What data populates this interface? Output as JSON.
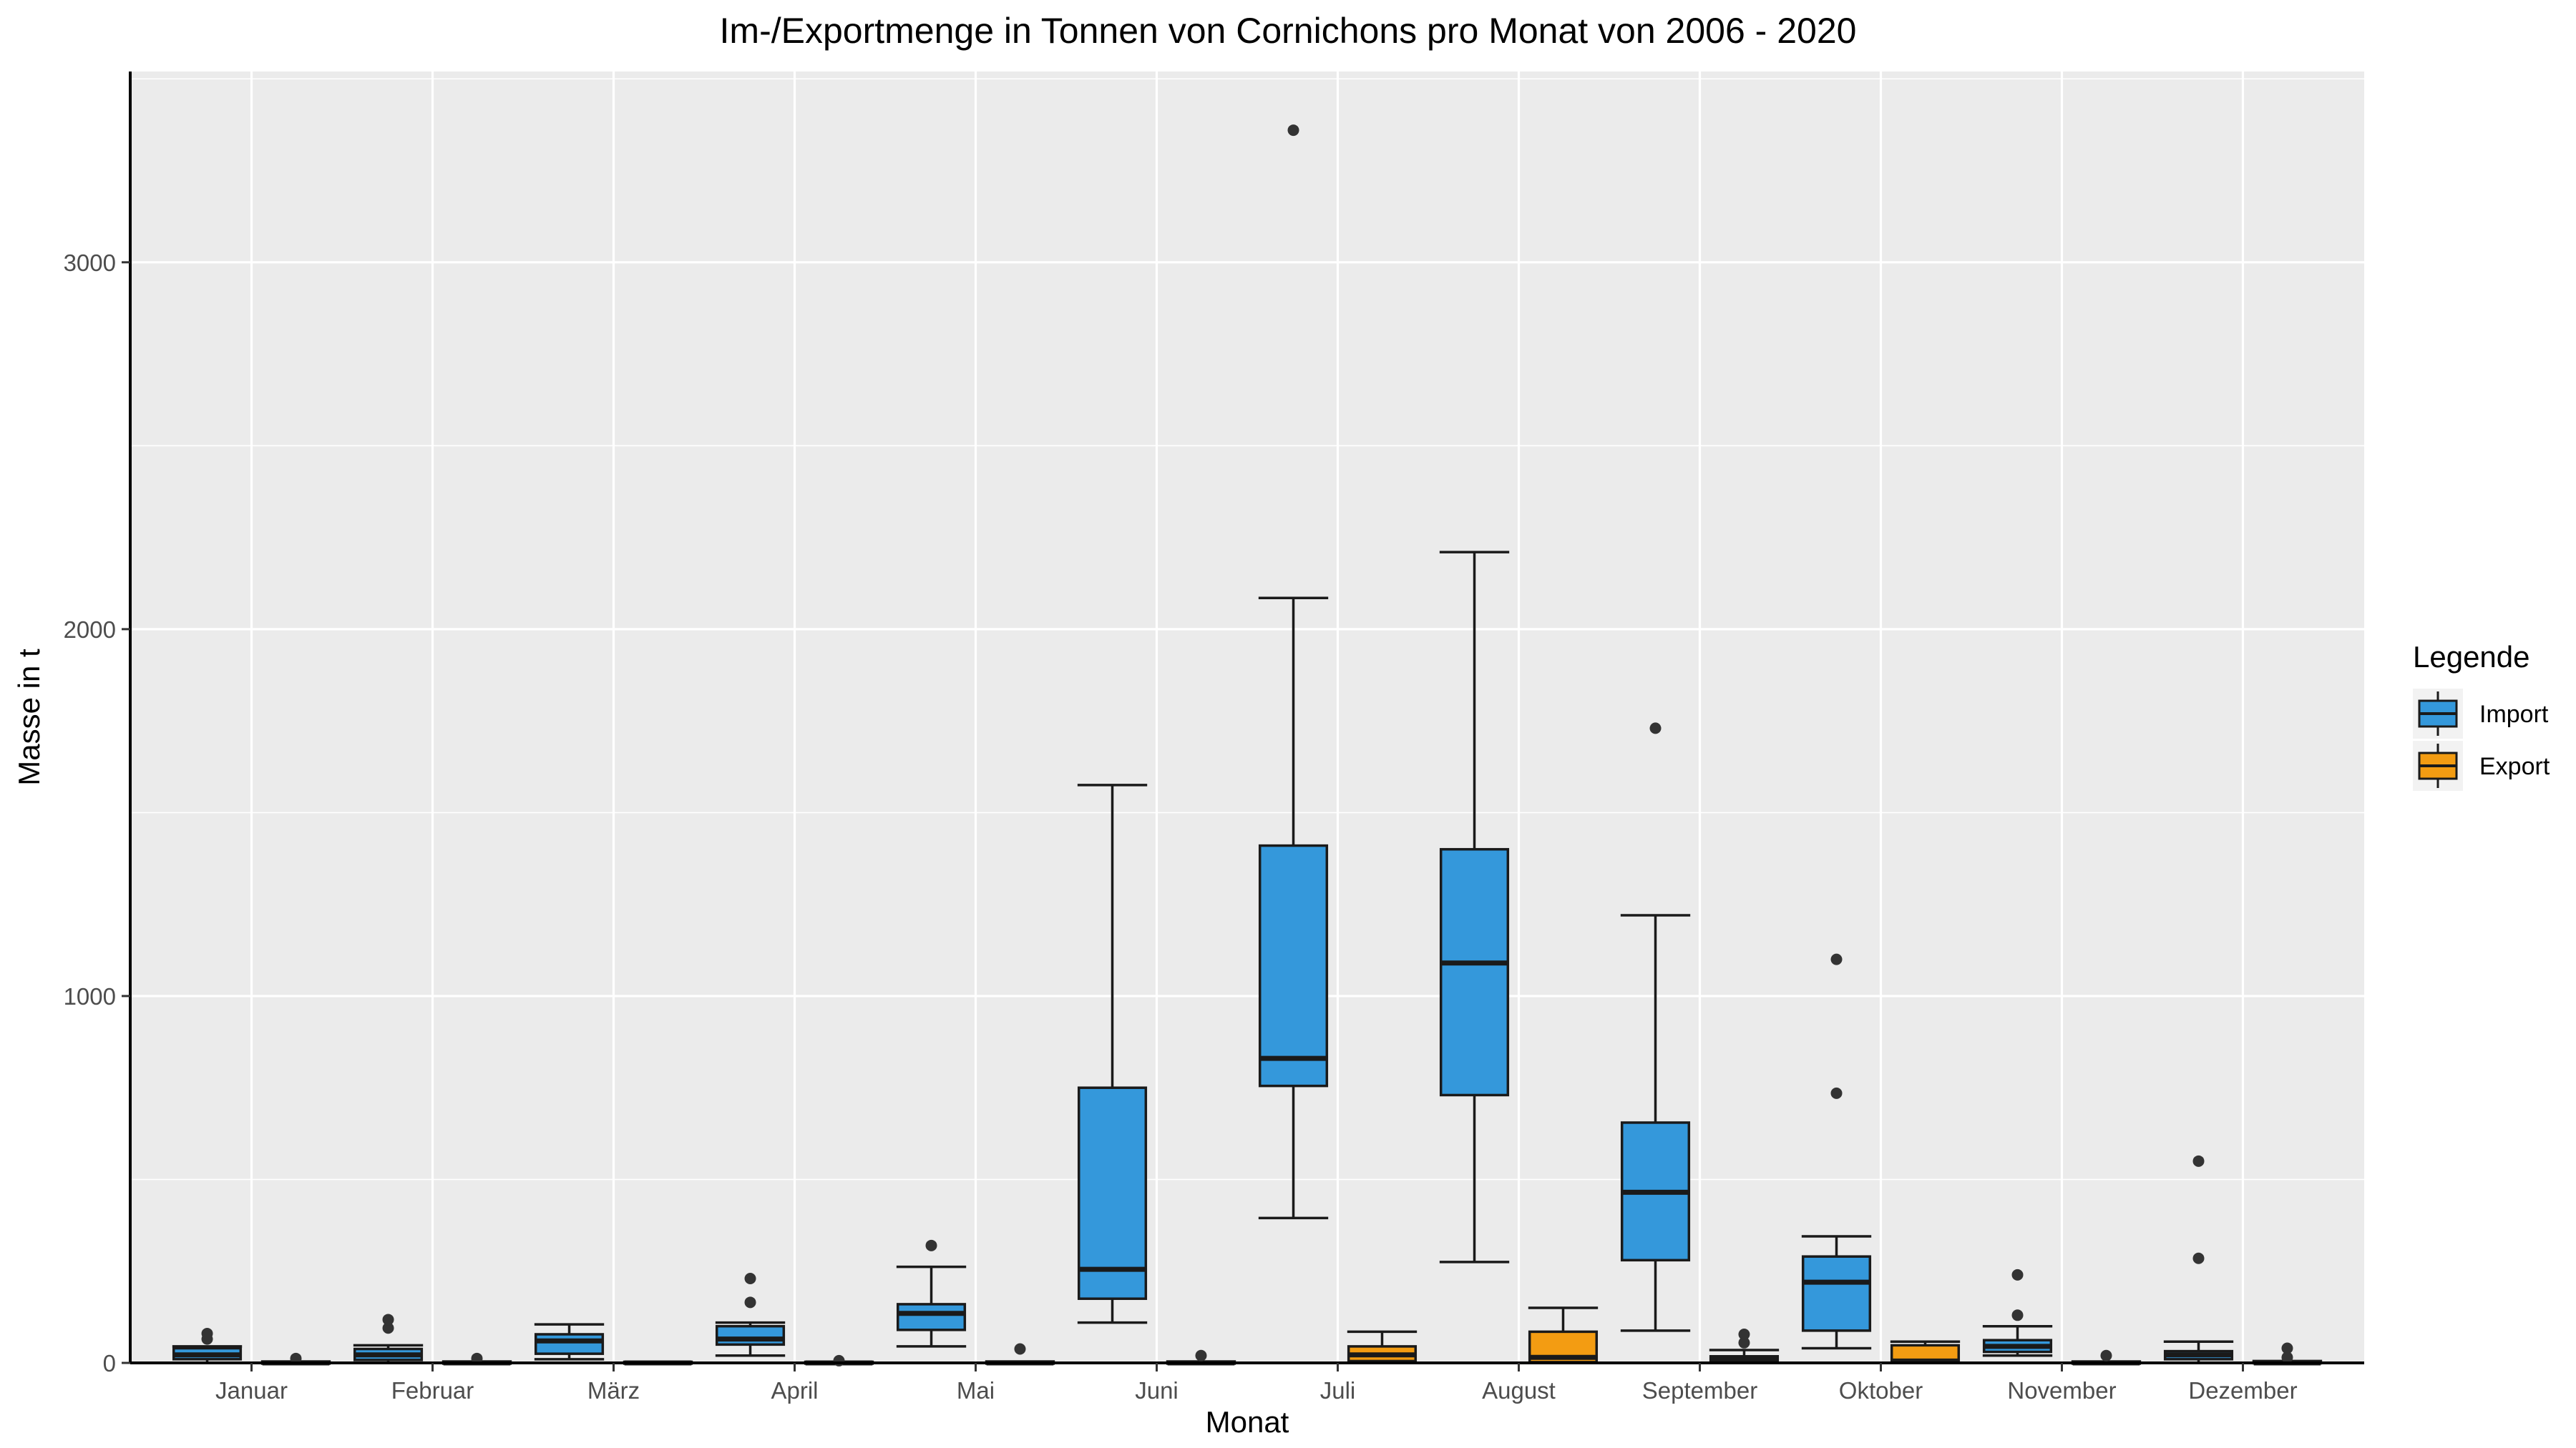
{
  "chart_data": {
    "type": "boxplot",
    "title": "Im-/Exportmenge in Tonnen von Cornichons pro Monat von 2006 - 2020",
    "xlabel": "Monat",
    "ylabel": "Masse in t",
    "ylim": [
      0,
      3520
    ],
    "y_ticks": [
      0,
      1000,
      2000,
      3000
    ],
    "grid": true,
    "background": "#ebebeb",
    "legend": {
      "title": "Legende",
      "position": "right",
      "entries": [
        {
          "name": "Import",
          "color": "#3498db"
        },
        {
          "name": "Export",
          "color": "#f39c12"
        }
      ]
    },
    "categories": [
      "Januar",
      "Februar",
      "März",
      "April",
      "Mai",
      "Juni",
      "Juli",
      "August",
      "September",
      "Oktober",
      "November",
      "Dezember"
    ],
    "series": [
      {
        "name": "Import",
        "color": "#3498db",
        "boxes": [
          {
            "whisker_low": 0,
            "q1": 10,
            "median": 22,
            "q3": 40,
            "whisker_high": 45,
            "outliers": [
              65,
              80
            ]
          },
          {
            "whisker_low": 0,
            "q1": 8,
            "median": 22,
            "q3": 38,
            "whisker_high": 48,
            "outliers": [
              95,
              118
            ]
          },
          {
            "whisker_low": 10,
            "q1": 25,
            "median": 60,
            "q3": 78,
            "whisker_high": 105,
            "outliers": []
          },
          {
            "whisker_low": 20,
            "q1": 50,
            "median": 65,
            "q3": 100,
            "whisker_high": 110,
            "outliers": [
              165,
              230
            ]
          },
          {
            "whisker_low": 45,
            "q1": 90,
            "median": 135,
            "q3": 160,
            "whisker_high": 262,
            "outliers": [
              320
            ]
          },
          {
            "whisker_low": 110,
            "q1": 175,
            "median": 255,
            "q3": 750,
            "whisker_high": 1575,
            "outliers": []
          },
          {
            "whisker_low": 395,
            "q1": 755,
            "median": 830,
            "q3": 1410,
            "whisker_high": 2085,
            "outliers": [
              3360
            ]
          },
          {
            "whisker_low": 275,
            "q1": 730,
            "median": 1090,
            "q3": 1400,
            "whisker_high": 2210,
            "outliers": []
          },
          {
            "whisker_low": 88,
            "q1": 280,
            "median": 465,
            "q3": 655,
            "whisker_high": 1220,
            "outliers": [
              1730
            ]
          },
          {
            "whisker_low": 40,
            "q1": 88,
            "median": 220,
            "q3": 290,
            "whisker_high": 345,
            "outliers": [
              735,
              1100
            ]
          },
          {
            "whisker_low": 20,
            "q1": 30,
            "median": 45,
            "q3": 62,
            "whisker_high": 100,
            "outliers": [
              130,
              240
            ]
          },
          {
            "whisker_low": 0,
            "q1": 10,
            "median": 22,
            "q3": 32,
            "whisker_high": 58,
            "outliers": [
              285,
              550
            ]
          }
        ]
      },
      {
        "name": "Export",
        "color": "#f39c12",
        "boxes": [
          {
            "whisker_low": 0,
            "q1": 0,
            "median": 0,
            "q3": 2,
            "whisker_high": 4,
            "outliers": [
              12
            ]
          },
          {
            "whisker_low": 0,
            "q1": 0,
            "median": 0,
            "q3": 2,
            "whisker_high": 4,
            "outliers": [
              12
            ]
          },
          {
            "whisker_low": 0,
            "q1": 0,
            "median": 0,
            "q3": 2,
            "whisker_high": 3,
            "outliers": []
          },
          {
            "whisker_low": 0,
            "q1": 0,
            "median": 0,
            "q3": 2,
            "whisker_high": 3,
            "outliers": [
              6
            ]
          },
          {
            "whisker_low": 0,
            "q1": 0,
            "median": 0,
            "q3": 2,
            "whisker_high": 4,
            "outliers": [
              38
            ]
          },
          {
            "whisker_low": 0,
            "q1": 0,
            "median": 0,
            "q3": 2,
            "whisker_high": 4,
            "outliers": [
              20
            ]
          },
          {
            "whisker_low": 0,
            "q1": 5,
            "median": 22,
            "q3": 45,
            "whisker_high": 85,
            "outliers": []
          },
          {
            "whisker_low": 0,
            "q1": 2,
            "median": 15,
            "q3": 85,
            "whisker_high": 150,
            "outliers": []
          },
          {
            "whisker_low": 0,
            "q1": 2,
            "median": 8,
            "q3": 18,
            "whisker_high": 35,
            "outliers": [
              55,
              78
            ]
          },
          {
            "whisker_low": 0,
            "q1": 2,
            "median": 5,
            "q3": 48,
            "whisker_high": 58,
            "outliers": []
          },
          {
            "whisker_low": 0,
            "q1": 0,
            "median": 0,
            "q3": 2,
            "whisker_high": 4,
            "outliers": [
              20
            ]
          },
          {
            "whisker_low": 0,
            "q1": 0,
            "median": 0,
            "q3": 3,
            "whisker_high": 5,
            "outliers": [
              15,
              40
            ]
          }
        ]
      }
    ]
  }
}
